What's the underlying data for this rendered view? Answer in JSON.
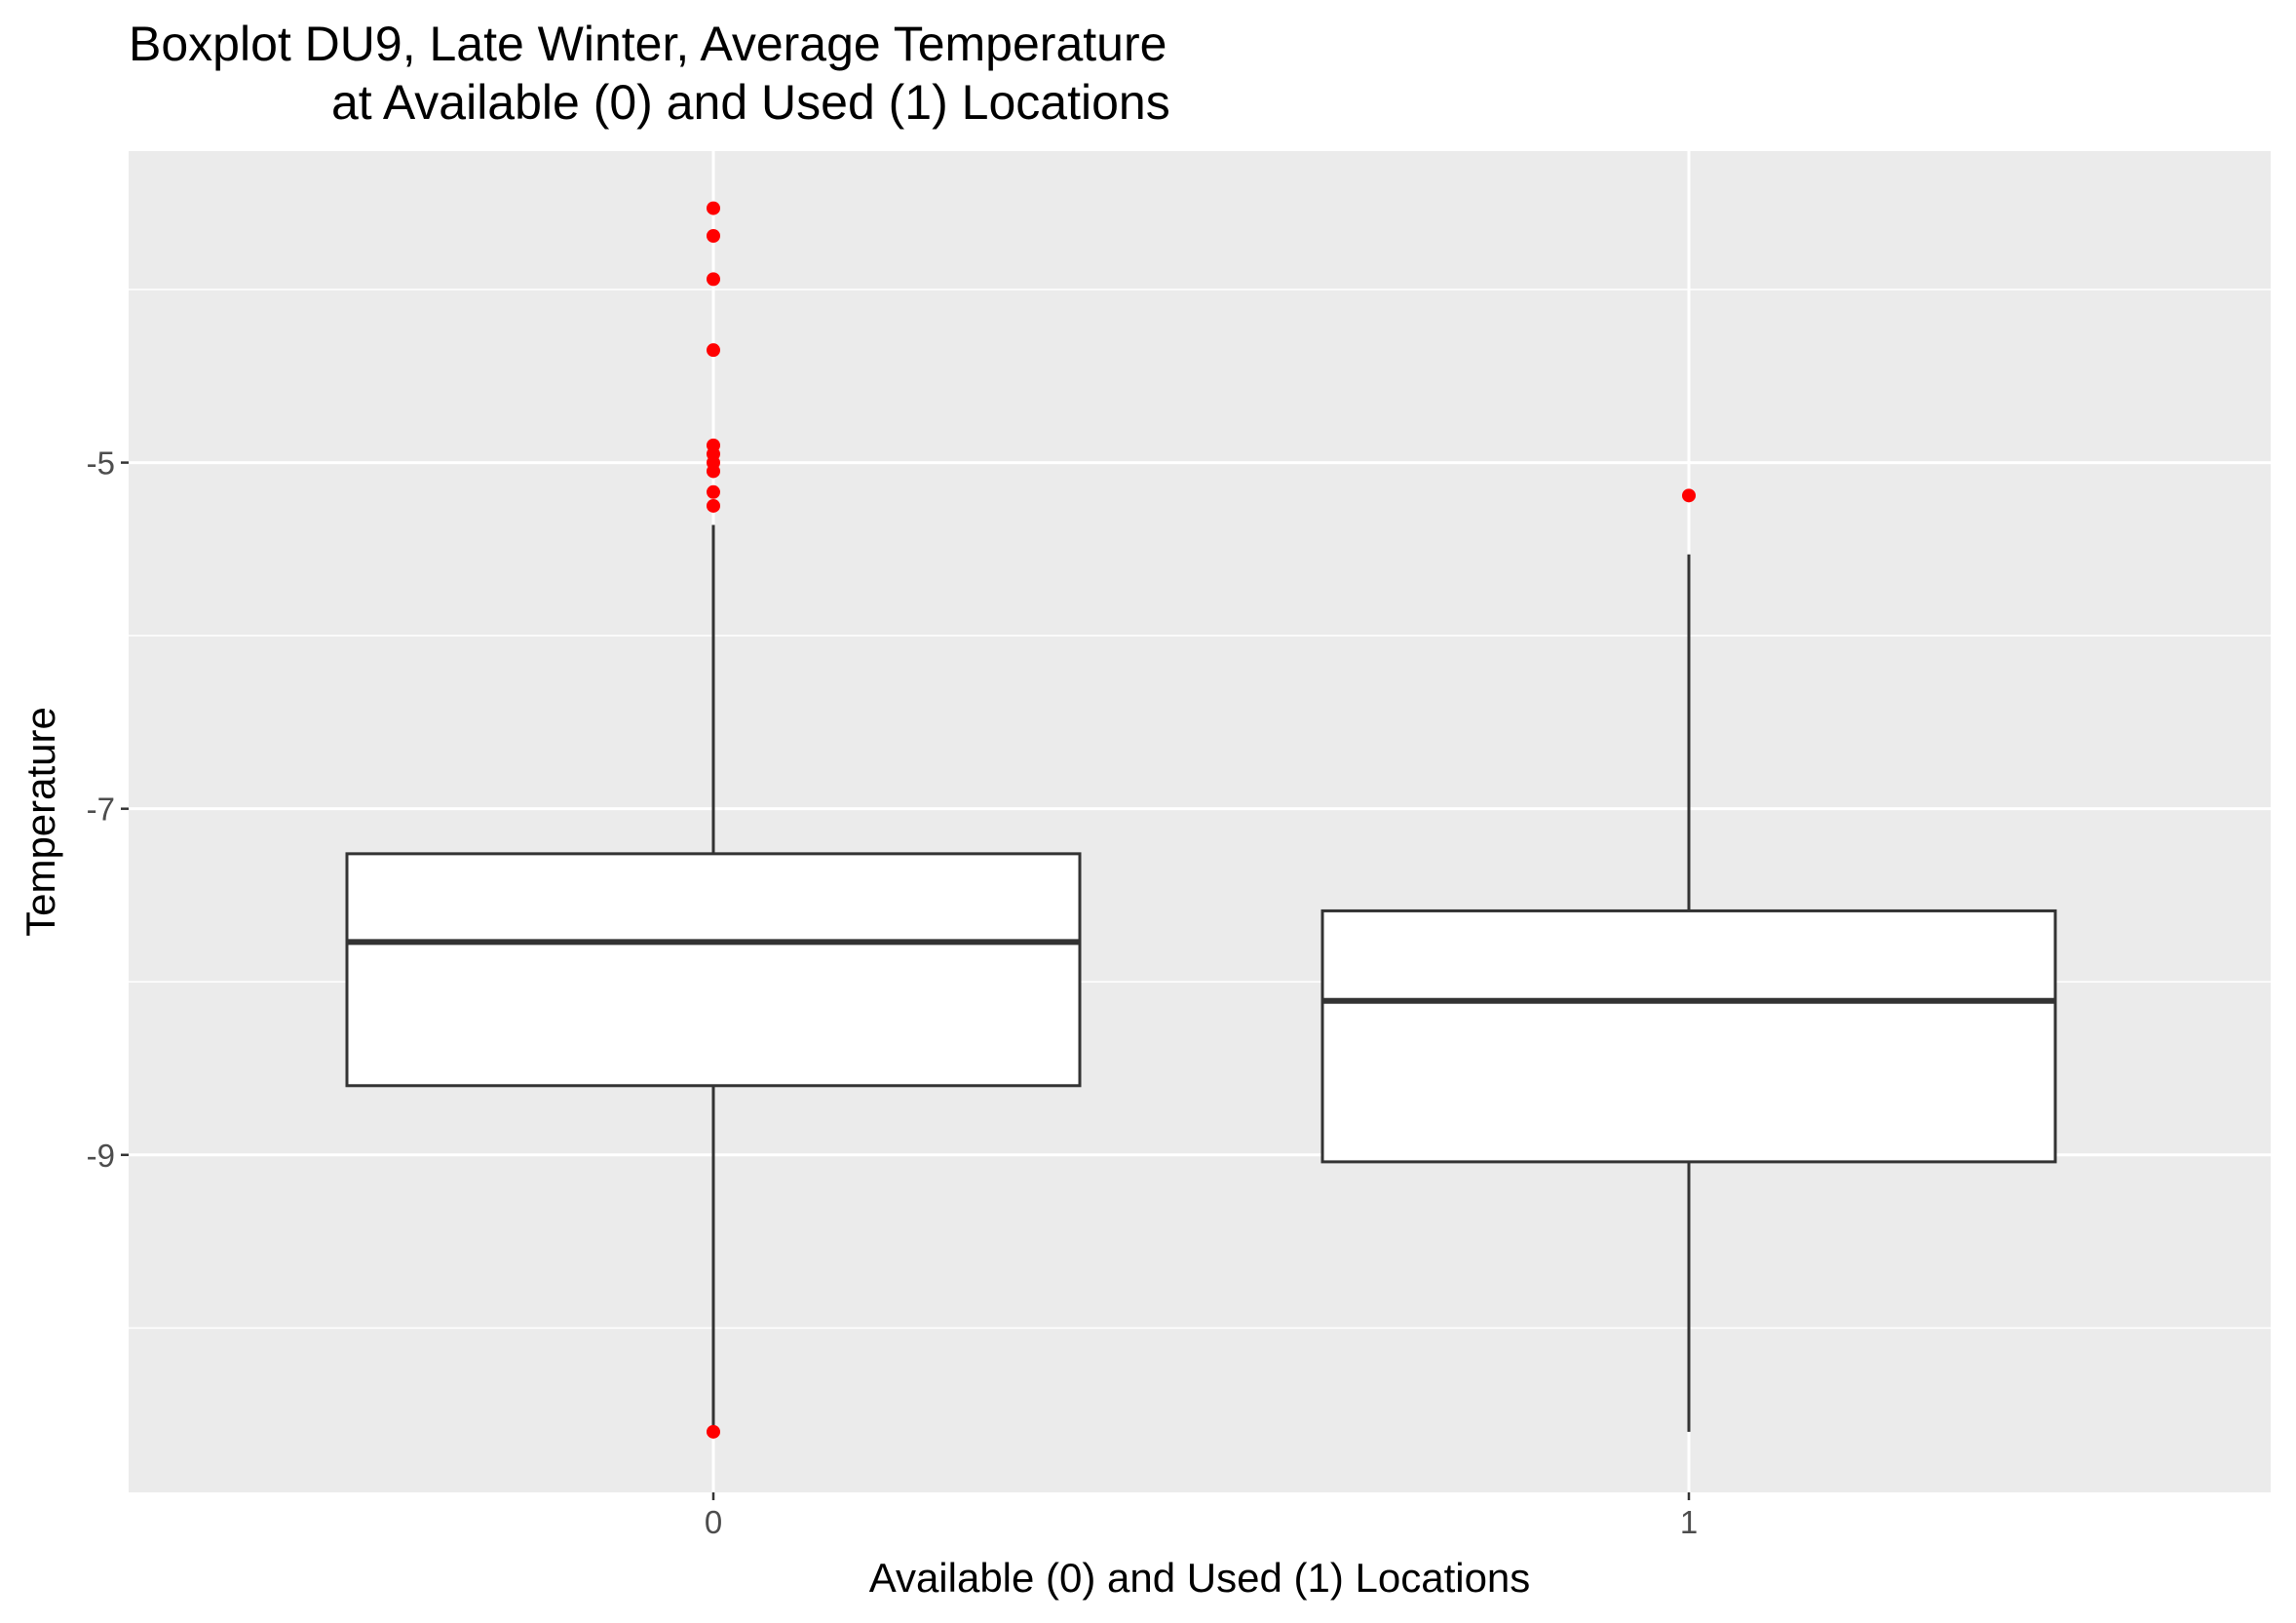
{
  "chart_data": {
    "type": "boxplot",
    "title": "Boxplot DU9, Late Winter, Average Temperature",
    "subtitle": "at Available (0) and Used (1) Locations",
    "xlabel": "Available (0) and Used (1) Locations",
    "ylabel": "Temperature",
    "categories": [
      "0",
      "1"
    ],
    "ylim": [
      -10.95,
      -3.2
    ],
    "y_ticks": [
      -9,
      -7,
      -5
    ],
    "y_tick_labels": [
      "-9",
      "-7",
      "-5"
    ],
    "grid": true,
    "outlier_color": "#ff0000",
    "panel_color": "#ebebeb",
    "boxes": [
      {
        "category": "0",
        "whisker_low": -10.6,
        "q1": -8.6,
        "median": -7.77,
        "q3": -7.26,
        "whisker_high": -5.36,
        "outliers": [
          -3.53,
          -3.69,
          -3.94,
          -4.35,
          -4.9,
          -4.95,
          -5.0,
          -5.05,
          -5.17,
          -5.25,
          -10.6
        ]
      },
      {
        "category": "1",
        "whisker_low": -10.6,
        "q1": -9.04,
        "median": -8.11,
        "q3": -7.59,
        "whisker_high": -5.53,
        "outliers": [
          -5.19
        ]
      }
    ]
  }
}
